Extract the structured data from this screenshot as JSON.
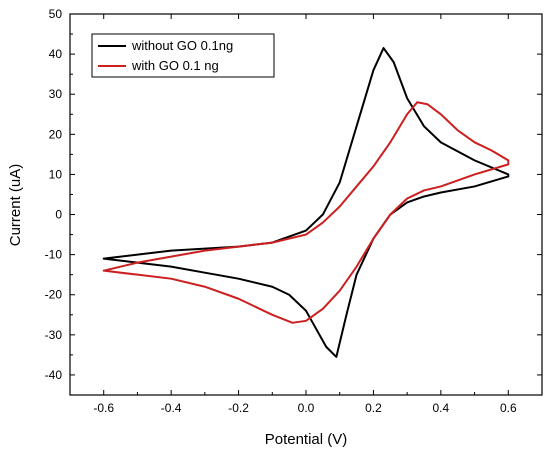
{
  "chart_data": {
    "type": "line",
    "title": "",
    "xlabel": "Potential (V)",
    "ylabel": "Current (uA)",
    "xlim": [
      -0.7,
      0.7
    ],
    "ylim": [
      -45,
      50
    ],
    "x_ticks": [
      -0.6,
      -0.4,
      -0.2,
      0.0,
      0.2,
      0.4,
      0.6
    ],
    "x_tick_labels": [
      "-0.6",
      "-0.4",
      "-0.2",
      "0.0",
      "0.2",
      "0.4",
      "0.6"
    ],
    "y_ticks": [
      -40,
      -30,
      -20,
      -10,
      0,
      10,
      20,
      30,
      40,
      50
    ],
    "y_tick_labels": [
      "-40",
      "-30",
      "-20",
      "-10",
      "0",
      "10",
      "20",
      "30",
      "40",
      "50"
    ],
    "grid": false,
    "legend_position": "top-left",
    "series": [
      {
        "name": "without GO 0.1ng",
        "color": "#000000",
        "x": [
          -0.6,
          -0.5,
          -0.4,
          -0.3,
          -0.2,
          -0.1,
          0.0,
          0.05,
          0.1,
          0.15,
          0.2,
          0.23,
          0.26,
          0.3,
          0.35,
          0.4,
          0.5,
          0.6,
          0.6,
          0.5,
          0.4,
          0.35,
          0.3,
          0.25,
          0.2,
          0.15,
          0.12,
          0.09,
          0.06,
          0.02,
          0.0,
          -0.05,
          -0.1,
          -0.2,
          -0.3,
          -0.4,
          -0.5,
          -0.6
        ],
        "y": [
          -11,
          -10,
          -9,
          -8.5,
          -8,
          -7,
          -4,
          0,
          8,
          22,
          36,
          41.5,
          38,
          29,
          22,
          18,
          13.5,
          10,
          9.5,
          7,
          5.5,
          4.5,
          3,
          0,
          -6,
          -15,
          -25,
          -35.5,
          -33,
          -27,
          -24,
          -20,
          -18,
          -16,
          -14.5,
          -13,
          -12,
          -11
        ]
      },
      {
        "name": "with GO 0.1 ng",
        "color": "#cc1f1f",
        "x": [
          -0.6,
          -0.5,
          -0.4,
          -0.3,
          -0.2,
          -0.1,
          0.0,
          0.05,
          0.1,
          0.15,
          0.2,
          0.25,
          0.3,
          0.33,
          0.36,
          0.4,
          0.45,
          0.5,
          0.55,
          0.6,
          0.6,
          0.5,
          0.45,
          0.4,
          0.35,
          0.3,
          0.25,
          0.2,
          0.15,
          0.1,
          0.05,
          0.0,
          -0.04,
          -0.1,
          -0.2,
          -0.3,
          -0.4,
          -0.5,
          -0.6
        ],
        "y": [
          -14,
          -12,
          -10.5,
          -9,
          -8,
          -7,
          -5,
          -2,
          2,
          7,
          12,
          18,
          25,
          28,
          27.5,
          25,
          21,
          18,
          16,
          13.5,
          12.5,
          10,
          8.5,
          7,
          6,
          4,
          0,
          -6,
          -13,
          -19,
          -23.5,
          -26.5,
          -27,
          -25,
          -21,
          -18,
          -16,
          -15,
          -14
        ]
      }
    ]
  }
}
